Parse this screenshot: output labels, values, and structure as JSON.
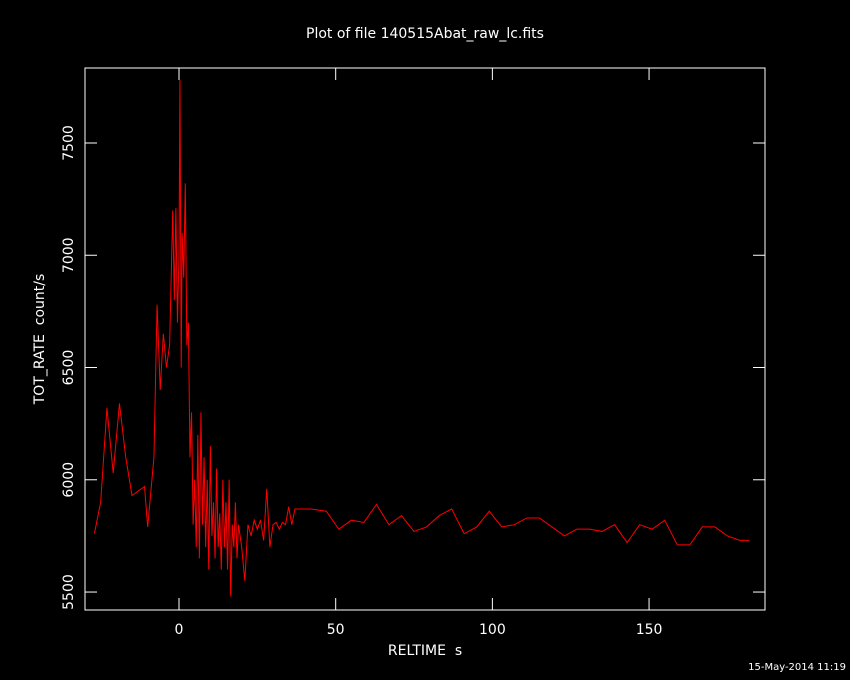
{
  "chart_data": {
    "type": "line",
    "title": "Plot of file 140515Abat_raw_lc.fits",
    "xlabel": "RELTIME  s",
    "ylabel": "TOT_RATE  count/s",
    "timestamp": "15-May-2014 11:19",
    "background": "#000000",
    "axis_color": "#ffffff",
    "xlim": [
      -30,
      187
    ],
    "ylim": [
      5420,
      7834
    ],
    "xticks": [
      0,
      50,
      100,
      150
    ],
    "yticks": [
      5500,
      6000,
      6500,
      7000,
      7500
    ],
    "x": [
      -27,
      -25,
      -23,
      -21,
      -19,
      -17,
      -15,
      -13,
      -11,
      -10,
      -8,
      -7,
      -6,
      -5,
      -4,
      -3,
      -2,
      -1.5,
      -1,
      -0.5,
      0,
      0.3,
      0.7,
      1,
      1.5,
      2,
      2.5,
      3,
      3.5,
      4,
      4.5,
      5,
      5.5,
      6,
      6.5,
      7,
      7.5,
      8,
      8.5,
      9,
      9.5,
      10,
      10.5,
      11,
      11.5,
      12,
      12.5,
      13,
      13.5,
      14,
      14.5,
      15,
      15.5,
      16,
      16.5,
      17,
      17.5,
      18,
      18.5,
      19,
      20,
      21,
      22,
      23,
      24,
      25,
      26,
      27,
      28,
      29,
      30,
      31,
      32,
      33,
      34,
      35,
      36,
      37,
      42,
      47,
      51,
      55,
      59,
      63,
      67,
      71,
      75,
      79,
      83,
      87,
      91,
      95,
      99,
      103,
      107,
      111,
      115,
      119,
      123,
      127,
      131,
      135,
      139,
      143,
      147,
      151,
      155,
      159,
      163,
      167,
      171,
      175,
      179,
      182
    ],
    "series": [
      {
        "color": "#ff0000",
        "values": [
          5760,
          5900,
          6320,
          6030,
          6340,
          6100,
          5930,
          5950,
          5970,
          5790,
          6100,
          6780,
          6400,
          6650,
          6500,
          6600,
          7200,
          6800,
          7210,
          6700,
          7000,
          7780,
          6500,
          7100,
          6900,
          7320,
          6600,
          6700,
          6100,
          6300,
          5800,
          6000,
          5700,
          6200,
          5650,
          6300,
          5800,
          6100,
          5700,
          6000,
          5600,
          6150,
          5750,
          5900,
          5650,
          6050,
          5700,
          5850,
          5600,
          6000,
          5700,
          5900,
          5600,
          6000,
          5480,
          5800,
          5700,
          5900,
          5650,
          5800,
          5700,
          5550,
          5800,
          5750,
          5820,
          5780,
          5820,
          5730,
          5960,
          5700,
          5800,
          5810,
          5780,
          5810,
          5800,
          5880,
          5800,
          5870,
          5870,
          5860,
          5780,
          5820,
          5810,
          5890,
          5800,
          5840,
          5770,
          5790,
          5840,
          5870,
          5760,
          5790,
          5860,
          5790,
          5800,
          5830,
          5830,
          5790,
          5750,
          5780,
          5780,
          5770,
          5800,
          5720,
          5800,
          5780,
          5820,
          5710,
          5710,
          5790,
          5790,
          5750,
          5730,
          5730
        ]
      }
    ]
  }
}
